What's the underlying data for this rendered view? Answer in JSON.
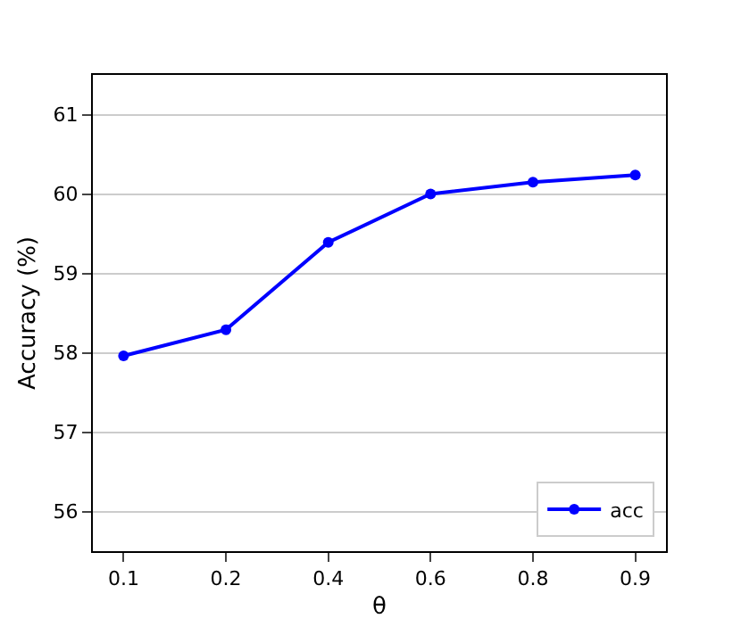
{
  "chart_data": {
    "type": "line",
    "xlabel": "θ",
    "ylabel": "Accuracy (%)",
    "categories": [
      "0.1",
      "0.2",
      "0.4",
      "0.6",
      "0.8",
      "0.9"
    ],
    "series": [
      {
        "name": "acc",
        "color": "#0000ff",
        "values": [
          57.96,
          58.29,
          59.39,
          60.0,
          60.15,
          60.24
        ]
      }
    ],
    "ylim": [
      55.5,
      61.5
    ],
    "yticks": [
      56,
      57,
      58,
      59,
      60,
      61
    ],
    "grid": "y",
    "legend": "bottom right",
    "marker": "circle",
    "line_style": "solid"
  }
}
